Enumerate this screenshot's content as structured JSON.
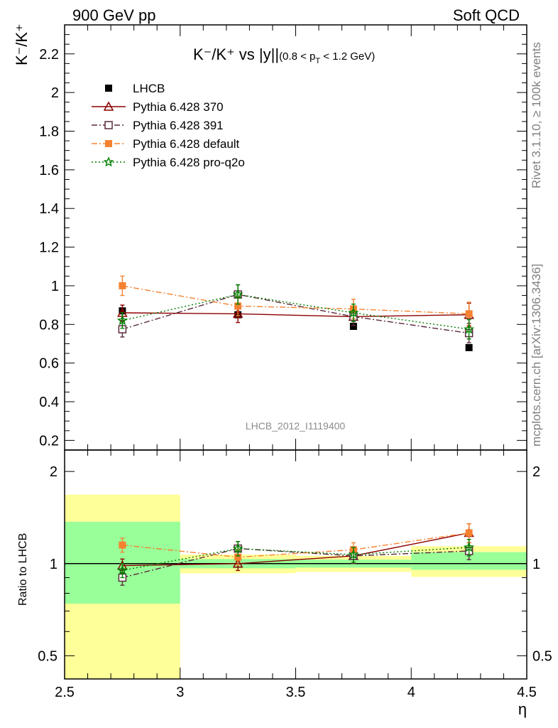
{
  "header": {
    "left": "900 GeV pp",
    "right": "Soft QCD"
  },
  "side_text": {
    "top": "Rivet 3.1.10, ≥ 100k events",
    "bottom": "mcplots.cern.ch [arXiv:1306.3436]"
  },
  "analysis_id": "LHCB_2012_I1119400",
  "chart_data": [
    {
      "panel": "main",
      "type": "scatter",
      "title_main": "K⁻/K⁺ vs |y|",
      "title_cut": "(0.8 < p",
      "title_cut_sub": "T",
      "title_cut_end": " < 1.2 GeV)",
      "ylabel": "K⁻/K⁺",
      "xlim": [
        2.5,
        4.5
      ],
      "ylim": [
        0.15,
        2.35
      ],
      "y_ticks": [
        0.2,
        0.4,
        0.6,
        0.8,
        1,
        1.2,
        1.4,
        1.6,
        1.8,
        2,
        2.2
      ],
      "y_tick_labels": [
        "0.2",
        "0.4",
        "0.6",
        "0.8",
        "1",
        "1.2",
        "1.4",
        "1.6",
        "1.8",
        "2",
        "2.2"
      ],
      "legend_position": "top-left",
      "grid": false,
      "x": [
        2.75,
        3.25,
        3.75,
        4.25
      ],
      "series": [
        {
          "name": "LHCB",
          "color": "#000000",
          "marker": "filled-square",
          "line": "none",
          "values": [
            0.87,
            0.85,
            0.79,
            0.68
          ]
        },
        {
          "name": "Pythia 6.428 370",
          "color": "#8b0000",
          "marker": "open-triangle",
          "line": "solid",
          "values": [
            0.86,
            0.855,
            0.84,
            0.85
          ],
          "err": [
            0.04,
            0.045,
            0.045,
            0.06
          ]
        },
        {
          "name": "Pythia 6.428 391",
          "color": "#5a2a3a",
          "marker": "open-square",
          "line": "dashdot",
          "values": [
            0.775,
            0.955,
            0.84,
            0.755
          ],
          "err": [
            0.04,
            0.05,
            0.045,
            0.05
          ]
        },
        {
          "name": "Pythia 6.428 default",
          "color": "#f58231",
          "marker": "filled-square",
          "line": "dashdot",
          "values": [
            1.0,
            0.895,
            0.88,
            0.855
          ],
          "err": [
            0.05,
            0.05,
            0.05,
            0.06
          ]
        },
        {
          "name": "Pythia 6.428 pro-q2o",
          "color": "#008000",
          "marker": "star",
          "line": "dotted",
          "values": [
            0.82,
            0.955,
            0.86,
            0.775
          ],
          "err": [
            0.04,
            0.05,
            0.045,
            0.05
          ]
        }
      ]
    },
    {
      "panel": "ratio",
      "type": "scatter",
      "ylabel": "Ratio to LHCB",
      "xlabel": "η",
      "xlim": [
        2.5,
        4.5
      ],
      "ylim": [
        0.42,
        2.35
      ],
      "log_y": true,
      "y_ticks": [
        0.5,
        1,
        2
      ],
      "y_tick_labels": [
        "0.5",
        "1",
        "2"
      ],
      "x_ticks": [
        2.5,
        3,
        3.5,
        4,
        4.5
      ],
      "x_tick_labels": [
        "2.5",
        "3",
        "3.5",
        "4",
        "4.5"
      ],
      "bins": [
        {
          "x_low": 2.5,
          "x_high": 3.0,
          "band_1sigma": [
            0.74,
            1.37
          ],
          "band_2sigma": [
            0.42,
            1.68
          ]
        },
        {
          "x_low": 3.0,
          "x_high": 3.5,
          "band_1sigma": [
            0.965,
            1.035
          ],
          "band_2sigma": [
            0.93,
            1.07
          ]
        },
        {
          "x_low": 3.5,
          "x_high": 4.0,
          "band_1sigma": [
            0.97,
            1.03
          ],
          "band_2sigma": [
            0.94,
            1.06
          ]
        },
        {
          "x_low": 4.0,
          "x_high": 4.5,
          "band_1sigma": [
            0.955,
            1.09
          ],
          "band_2sigma": [
            0.905,
            1.14
          ]
        }
      ],
      "band_colors": {
        "one_sigma": "#99ff99",
        "two_sigma": "#ffff99"
      },
      "x": [
        2.75,
        3.25,
        3.75,
        4.25
      ],
      "series": [
        {
          "name": "Pythia 6.428 370",
          "color": "#8b0000",
          "marker": "open-triangle",
          "line": "solid",
          "values": [
            0.985,
            1.0,
            1.06,
            1.26
          ],
          "err": [
            0.05,
            0.05,
            0.06,
            0.09
          ]
        },
        {
          "name": "Pythia 6.428 391",
          "color": "#5a2a3a",
          "marker": "open-square",
          "line": "dashdot",
          "values": [
            0.9,
            1.12,
            1.06,
            1.1
          ],
          "err": [
            0.05,
            0.06,
            0.06,
            0.07
          ]
        },
        {
          "name": "Pythia 6.428 default",
          "color": "#f58231",
          "marker": "filled-square",
          "line": "dashdot",
          "values": [
            1.15,
            1.05,
            1.11,
            1.26
          ],
          "err": [
            0.06,
            0.06,
            0.06,
            0.09
          ]
        },
        {
          "name": "Pythia 6.428 pro-q2o",
          "color": "#008000",
          "marker": "star",
          "line": "dotted",
          "values": [
            0.95,
            1.12,
            1.07,
            1.13
          ],
          "err": [
            0.05,
            0.06,
            0.06,
            0.07
          ]
        }
      ]
    }
  ]
}
